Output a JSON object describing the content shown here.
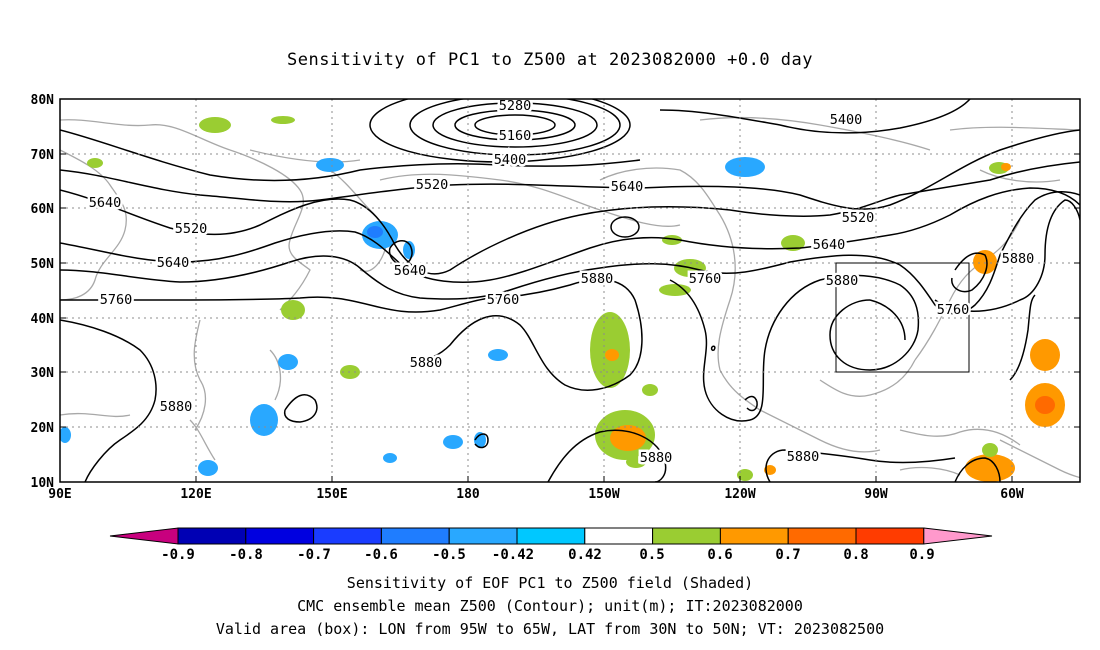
{
  "title": "Sensitivity of PC1 to Z500 at 2023082000 +0.0 day",
  "map": {
    "lat_labels": [
      "80N",
      "70N",
      "60N",
      "50N",
      "40N",
      "30N",
      "20N",
      "10N"
    ],
    "lon_labels": [
      "90E",
      "120E",
      "150E",
      "180",
      "150W",
      "120W",
      "90W",
      "60W"
    ],
    "contour_labels": [
      {
        "text": "5280"
      },
      {
        "text": "5160"
      },
      {
        "text": "5400"
      },
      {
        "text": "5400"
      },
      {
        "text": "5520"
      },
      {
        "text": "5640"
      },
      {
        "text": "5640"
      },
      {
        "text": "5520"
      },
      {
        "text": "5520"
      },
      {
        "text": "5640"
      },
      {
        "text": "5640"
      },
      {
        "text": "5640"
      },
      {
        "text": "5760"
      },
      {
        "text": "5760"
      },
      {
        "text": "5760"
      },
      {
        "text": "5760"
      },
      {
        "text": "5880"
      },
      {
        "text": "5880"
      },
      {
        "text": "5880"
      },
      {
        "text": "5880"
      },
      {
        "text": "5880"
      },
      {
        "text": "5880"
      },
      {
        "text": "5880"
      }
    ],
    "valid_box": {
      "lon_from": "95W",
      "lon_to": "65W",
      "lat_from": "30N",
      "lat_to": "50N"
    }
  },
  "colorbar": {
    "labels": [
      "-0.9",
      "-0.8",
      "-0.7",
      "-0.6",
      "-0.5",
      "-0.42",
      "0.42",
      "0.5",
      "0.6",
      "0.7",
      "0.8",
      "0.9"
    ],
    "colors": [
      "#c8007e",
      "#0000b4",
      "#0000e0",
      "#1a3cff",
      "#1f7dff",
      "#29a8ff",
      "#00c8ff",
      "#ffffff",
      "#9acd32",
      "#ff9900",
      "#ff6a00",
      "#ff3c00",
      "#ff0000",
      "#ff99cc"
    ]
  },
  "captions": {
    "line1": "Sensitivity of EOF PC1 to Z500 field (Shaded)",
    "line2": "CMC ensemble mean Z500 (Contour); unit(m); IT:2023082000",
    "line3": "Valid area (box): LON from 95W to 65W, LAT from 30N to 50N; VT: 2023082500"
  }
}
